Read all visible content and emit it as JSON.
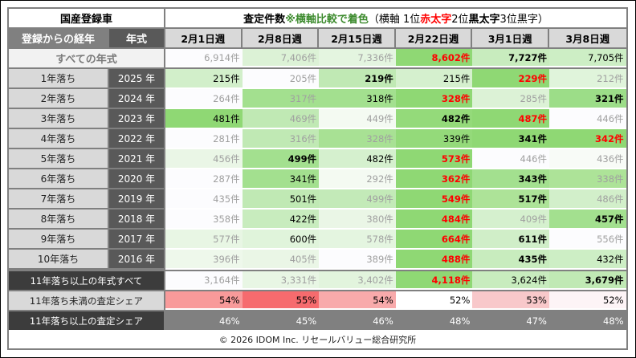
{
  "title": {
    "left": "国産登録車",
    "main_prefix": "査定件数 ",
    "main_green": "※横軸比較で着色",
    "legend_open": "（横軸 1位",
    "legend_red": "赤太字",
    "legend_mid": " 2位",
    "legend_bold": "黒太字",
    "legend_end": " 3位黒字）"
  },
  "colors": {
    "green_label": "#3d8b2e",
    "rank1": "#ff0000",
    "grid": "#808080"
  },
  "header": {
    "age_label": "登録からの経年",
    "year_label": "年式",
    "weeks": [
      "2月1日週",
      "2月8日週",
      "2月15日週",
      "2月22日週",
      "3月1日週",
      "3月8日週"
    ]
  },
  "all_row": {
    "label": "すべての年式",
    "cells": [
      {
        "v": "6,914件",
        "s": "o",
        "bg": "#fcfcfe"
      },
      {
        "v": "7,406件",
        "s": "o",
        "bg": "#dcf2d6"
      },
      {
        "v": "7,336件",
        "s": "o",
        "bg": "#e4f5e0"
      },
      {
        "v": "8,602件",
        "s": "r1",
        "bg": "#8fd874"
      },
      {
        "v": "7,727件",
        "s": "r2",
        "bg": "#c8ecbe"
      },
      {
        "v": "7,705件",
        "s": "r3",
        "bg": "#cdeec5"
      }
    ]
  },
  "rows": [
    {
      "age": "1年落ち",
      "year": "2025 年",
      "cells": [
        {
          "v": "215件",
          "s": "r3",
          "bg": "#d2efca"
        },
        {
          "v": "205件",
          "s": "o",
          "bg": "#fcfcfe"
        },
        {
          "v": "219件",
          "s": "r2",
          "bg": "#c0e9b4"
        },
        {
          "v": "215件",
          "s": "r3",
          "bg": "#d5f0ce"
        },
        {
          "v": "229件",
          "s": "r1",
          "bg": "#8fd874"
        },
        {
          "v": "212件",
          "s": "o",
          "bg": "#e0f4db"
        }
      ]
    },
    {
      "age": "2年落ち",
      "year": "2024 年",
      "cells": [
        {
          "v": "264件",
          "s": "o",
          "bg": "#fcfcfe"
        },
        {
          "v": "317件",
          "s": "o",
          "bg": "#a3e08f"
        },
        {
          "v": "318件",
          "s": "r3",
          "bg": "#a3e08f"
        },
        {
          "v": "328件",
          "s": "r1",
          "bg": "#8fd874"
        },
        {
          "v": "285件",
          "s": "o",
          "bg": "#dcf2d6"
        },
        {
          "v": "321件",
          "s": "r2",
          "bg": "#9cdd88"
        }
      ]
    },
    {
      "age": "3年落ち",
      "year": "2023 年",
      "cells": [
        {
          "v": "481件",
          "s": "r3",
          "bg": "#8fd874"
        },
        {
          "v": "469件",
          "s": "o",
          "bg": "#c0e9b4"
        },
        {
          "v": "449件",
          "s": "o",
          "bg": "#f4faf2"
        },
        {
          "v": "482件",
          "s": "r2",
          "bg": "#94da7a"
        },
        {
          "v": "487件",
          "s": "r1",
          "bg": "#8fd874"
        },
        {
          "v": "446件",
          "s": "o",
          "bg": "#fcfcfe"
        }
      ]
    },
    {
      "age": "4年落ち",
      "year": "2022 年",
      "cells": [
        {
          "v": "281件",
          "s": "o",
          "bg": "#fcfcfe"
        },
        {
          "v": "316件",
          "s": "o",
          "bg": "#c0e9b4"
        },
        {
          "v": "328件",
          "s": "o",
          "bg": "#a8e194"
        },
        {
          "v": "339件",
          "s": "r3",
          "bg": "#94da7a"
        },
        {
          "v": "341件",
          "s": "r2",
          "bg": "#8fd874"
        },
        {
          "v": "342件",
          "s": "r1",
          "bg": "#8fd874"
        }
      ]
    },
    {
      "age": "5年落ち",
      "year": "2021 年",
      "cells": [
        {
          "v": "456件",
          "s": "o",
          "bg": "#eaf6e6"
        },
        {
          "v": "499件",
          "s": "r2",
          "bg": "#a3e08f"
        },
        {
          "v": "482件",
          "s": "r3",
          "bg": "#d5f0ce"
        },
        {
          "v": "573件",
          "s": "r1",
          "bg": "#8fd874"
        },
        {
          "v": "446件",
          "s": "o",
          "bg": "#fcfcfe"
        },
        {
          "v": "436件",
          "s": "o",
          "bg": "#f8fbf7"
        }
      ]
    },
    {
      "age": "6年落ち",
      "year": "2020 年",
      "cells": [
        {
          "v": "287件",
          "s": "o",
          "bg": "#fcfcfe"
        },
        {
          "v": "341件",
          "s": "r3",
          "bg": "#a3e08f"
        },
        {
          "v": "292件",
          "s": "o",
          "bg": "#f4faf2"
        },
        {
          "v": "362件",
          "s": "r1",
          "bg": "#8fd874"
        },
        {
          "v": "343件",
          "s": "r2",
          "bg": "#a3e08f"
        },
        {
          "v": "338件",
          "s": "o",
          "bg": "#ade398"
        }
      ]
    },
    {
      "age": "7年落ち",
      "year": "2019 年",
      "cells": [
        {
          "v": "435件",
          "s": "o",
          "bg": "#fcfcfe"
        },
        {
          "v": "501件",
          "s": "r3",
          "bg": "#c0e9b4"
        },
        {
          "v": "499件",
          "s": "o",
          "bg": "#c3eab8"
        },
        {
          "v": "549件",
          "s": "r1",
          "bg": "#8fd874"
        },
        {
          "v": "517件",
          "s": "r2",
          "bg": "#ade398"
        },
        {
          "v": "486件",
          "s": "o",
          "bg": "#d2efca"
        }
      ]
    },
    {
      "age": "8年落ち",
      "year": "2018 年",
      "cells": [
        {
          "v": "358件",
          "s": "o",
          "bg": "#fcfcfe"
        },
        {
          "v": "422件",
          "s": "r3",
          "bg": "#c8ecbe"
        },
        {
          "v": "380件",
          "s": "o",
          "bg": "#eaf6e6"
        },
        {
          "v": "484件",
          "s": "r1",
          "bg": "#8fd874"
        },
        {
          "v": "409件",
          "s": "o",
          "bg": "#d5f0ce"
        },
        {
          "v": "457件",
          "s": "r2",
          "bg": "#a3e08f"
        }
      ]
    },
    {
      "age": "9年落ち",
      "year": "2017 年",
      "cells": [
        {
          "v": "577件",
          "s": "o",
          "bg": "#e8f6e4"
        },
        {
          "v": "600件",
          "s": "r3",
          "bg": "#e0f4db"
        },
        {
          "v": "578件",
          "s": "o",
          "bg": "#e4f5e0"
        },
        {
          "v": "664件",
          "s": "r1",
          "bg": "#8fd874"
        },
        {
          "v": "611件",
          "s": "r2",
          "bg": "#d0eec8"
        },
        {
          "v": "556件",
          "s": "o",
          "bg": "#fcfcfe"
        }
      ]
    },
    {
      "age": "10年落ち",
      "year": "2016 年",
      "cells": [
        {
          "v": "396件",
          "s": "o",
          "bg": "#eef8eb"
        },
        {
          "v": "405件",
          "s": "o",
          "bg": "#eaf6e6"
        },
        {
          "v": "389件",
          "s": "o",
          "bg": "#fcfcfe"
        },
        {
          "v": "488件",
          "s": "r1",
          "bg": "#8fd874"
        },
        {
          "v": "435件",
          "s": "r2",
          "bg": "#c8ecbe"
        },
        {
          "v": "432件",
          "s": "r3",
          "bg": "#cdeec5"
        }
      ]
    }
  ],
  "over11_row": {
    "label": "11年落ち以上の年式すべて",
    "cells": [
      {
        "v": "3,164件",
        "s": "o",
        "bg": "#fcfcfe"
      },
      {
        "v": "3,331件",
        "s": "o",
        "bg": "#e8f6e4"
      },
      {
        "v": "3,402件",
        "s": "o",
        "bg": "#e2f4dd"
      },
      {
        "v": "4,118件",
        "s": "r1",
        "bg": "#8fd874"
      },
      {
        "v": "3,624件",
        "s": "r3",
        "bg": "#c8ecbe"
      },
      {
        "v": "3,679件",
        "s": "r2",
        "bg": "#c0e9b4"
      }
    ]
  },
  "share_under_row": {
    "label": "11年落ち未満の査定シェア",
    "cells": [
      {
        "v": "54%",
        "s": "r3",
        "bg": "#f89a9a"
      },
      {
        "v": "55%",
        "s": "r3",
        "bg": "#f66b6e"
      },
      {
        "v": "54%",
        "s": "r3",
        "bg": "#f8aaab"
      },
      {
        "v": "52%",
        "s": "r3",
        "bg": "#ffffff"
      },
      {
        "v": "53%",
        "s": "r3",
        "bg": "#f8c8ca"
      },
      {
        "v": "52%",
        "s": "r3",
        "bg": "#fdf4f6"
      }
    ]
  },
  "share_over_row": {
    "label": "11年落ち以上の査定シェア",
    "cells": [
      {
        "v": "46%",
        "s": "w",
        "bg": "#808080"
      },
      {
        "v": "45%",
        "s": "w",
        "bg": "#808080"
      },
      {
        "v": "46%",
        "s": "w",
        "bg": "#808080"
      },
      {
        "v": "48%",
        "s": "w",
        "bg": "#808080"
      },
      {
        "v": "47%",
        "s": "w",
        "bg": "#808080"
      },
      {
        "v": "48%",
        "s": "w",
        "bg": "#808080"
      }
    ]
  },
  "footer": "© 2026 IDOM Inc. リセールバリュー総合研究所"
}
